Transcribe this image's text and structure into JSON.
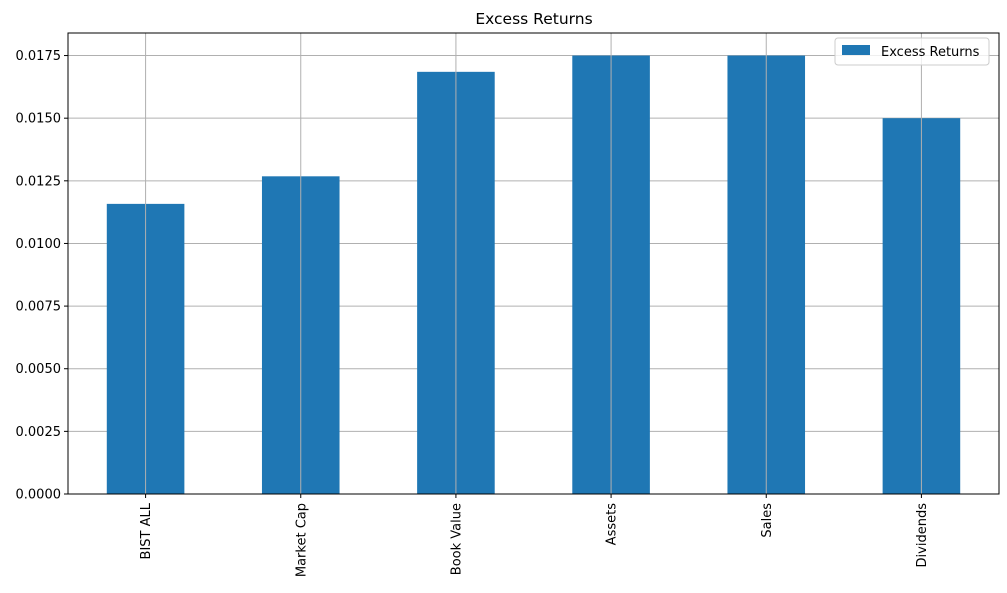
{
  "chart_data": {
    "type": "bar",
    "title": "Excess Returns",
    "xlabel": "",
    "ylabel": "",
    "categories": [
      "BIST ALL",
      "Market Cap",
      "Book Value",
      "Assets",
      "Sales",
      "Dividends"
    ],
    "series": [
      {
        "name": "Excess Returns",
        "values": [
          0.01158,
          0.01268,
          0.01685,
          0.0175,
          0.0175,
          0.015
        ]
      }
    ],
    "ylim": [
      0,
      0.0184
    ],
    "yticks": [
      0.0,
      0.0025,
      0.005,
      0.0075,
      0.01,
      0.0125,
      0.015,
      0.0175
    ],
    "ytick_labels": [
      "0.0000",
      "0.0025",
      "0.0050",
      "0.0075",
      "0.0100",
      "0.0125",
      "0.0150",
      "0.0175"
    ],
    "grid": true,
    "legend_position": "top-right",
    "colors": {
      "bar": "#1f77b4",
      "grid": "#b0b0b0",
      "axis": "#000000"
    }
  }
}
